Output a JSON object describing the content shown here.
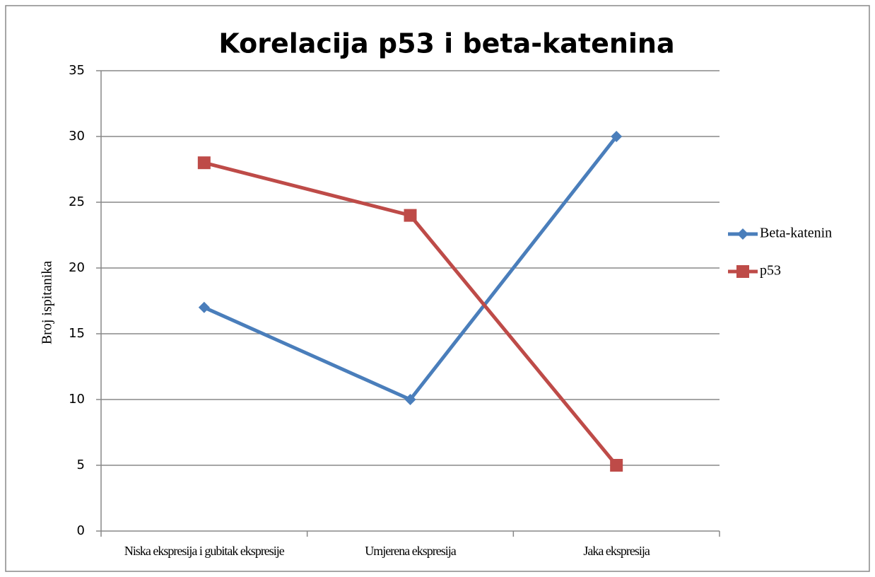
{
  "chart_data": {
    "type": "line",
    "title": "Korelacija p53 i beta-katenina",
    "ylabel": "Broj ispitanika",
    "categories": [
      "Niska ekspresija i gubitak ekspresije",
      "Umjerena ekspresija",
      "Jaka ekspresija"
    ],
    "series": [
      {
        "name": "Beta-katenin",
        "color": "#4a7ebb",
        "marker": "diamond",
        "values": [
          17,
          10,
          30
        ]
      },
      {
        "name": "p53",
        "color": "#be4b48",
        "marker": "square",
        "values": [
          28,
          24,
          5
        ]
      }
    ],
    "ylim": [
      0,
      35
    ],
    "yticks": [
      0,
      5,
      10,
      15,
      20,
      25,
      30,
      35
    ],
    "grid": true,
    "legend": "right"
  }
}
